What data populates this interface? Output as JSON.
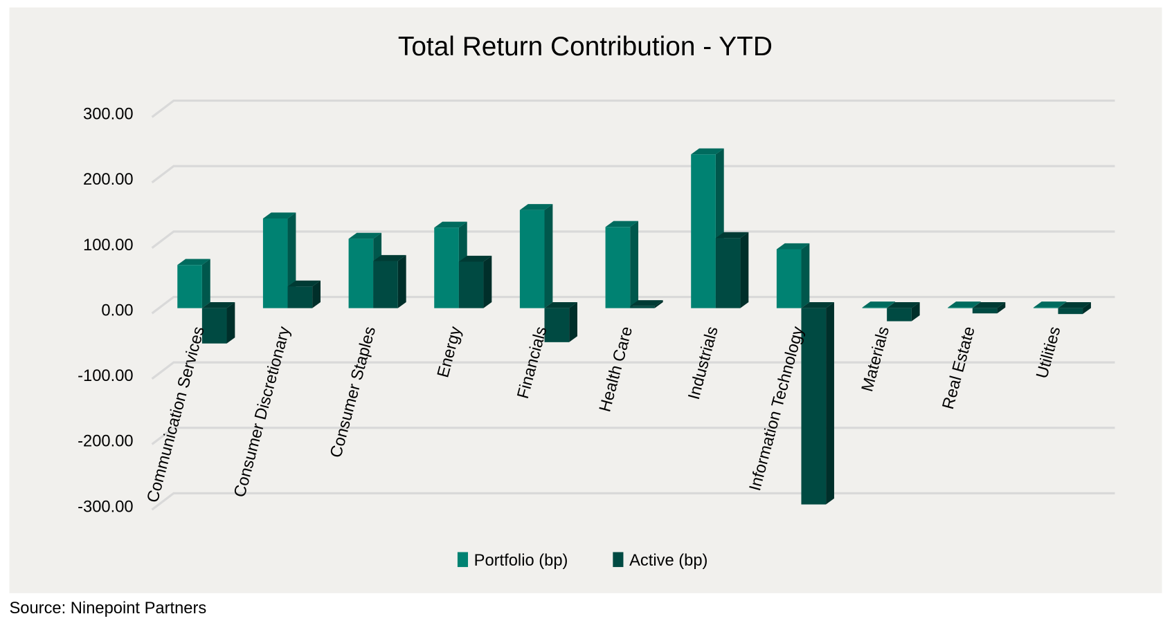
{
  "chart_data": {
    "type": "bar",
    "title": "Total Return Contribution - YTD",
    "xlabel": "",
    "ylabel": "",
    "ylim": [
      -300,
      300
    ],
    "yticks": [
      "300.00",
      "200.00",
      "100.00",
      "0.00",
      "-100.00",
      "-200.00",
      "-300.00"
    ],
    "ytick_values": [
      300,
      200,
      100,
      0,
      -100,
      -200,
      -300
    ],
    "grid": true,
    "legend_position": "bottom",
    "categories": [
      "Communication Services",
      "Consumer Discretionary",
      "Consumer Staples",
      "Energy",
      "Financials",
      "Health Care",
      "Industrials",
      "Information Technology",
      "Materials",
      "Real Estate",
      "Utilities"
    ],
    "series": [
      {
        "name": "Portfolio (bp)",
        "color": "#008272",
        "values": [
          66,
          137,
          106,
          123,
          150,
          124,
          235,
          90,
          1,
          1,
          1
        ]
      },
      {
        "name": "Active (bp)",
        "color": "#004a42",
        "values": [
          -54,
          33,
          72,
          71,
          -52,
          3,
          107,
          -300,
          -20,
          -8,
          -9
        ]
      }
    ]
  },
  "footer": {
    "source": "Source: Ninepoint Partners"
  },
  "colors": {
    "background": "#f1f0ed",
    "gridline": "#d9d9d9"
  }
}
